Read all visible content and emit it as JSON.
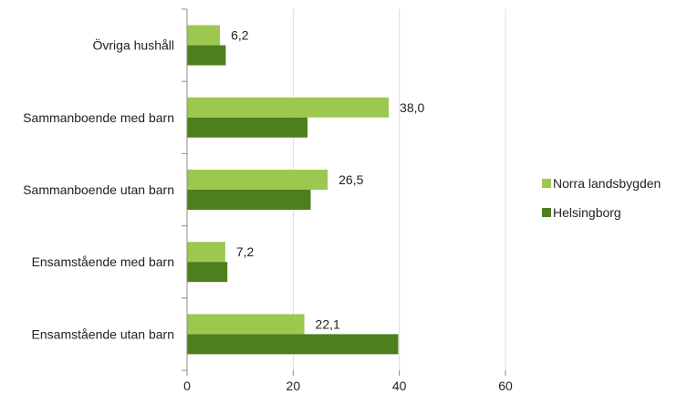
{
  "chart_data": {
    "type": "bar",
    "orientation": "horizontal",
    "categories": [
      "Övriga hushåll",
      "Sammanboende med barn",
      "Sammanboende utan barn",
      "Ensamstående med barn",
      "Ensamstående utan barn"
    ],
    "series": [
      {
        "name": "Norra landsbygden",
        "values": [
          6.2,
          38.0,
          26.5,
          7.2,
          22.1
        ],
        "color": "#9dc850",
        "labels": [
          "6,2",
          "38,0",
          "26,5",
          "7,2",
          "22,1"
        ]
      },
      {
        "name": "Helsingborg",
        "values": [
          7.3,
          22.7,
          23.3,
          7.6,
          39.8
        ],
        "color": "#4e7f1d"
      }
    ],
    "title": "",
    "xlabel": "",
    "ylabel": "",
    "xlim": [
      0,
      60
    ],
    "xticks": [
      "0",
      "20",
      "40",
      "60"
    ],
    "grid": true,
    "legend_position": "right"
  }
}
